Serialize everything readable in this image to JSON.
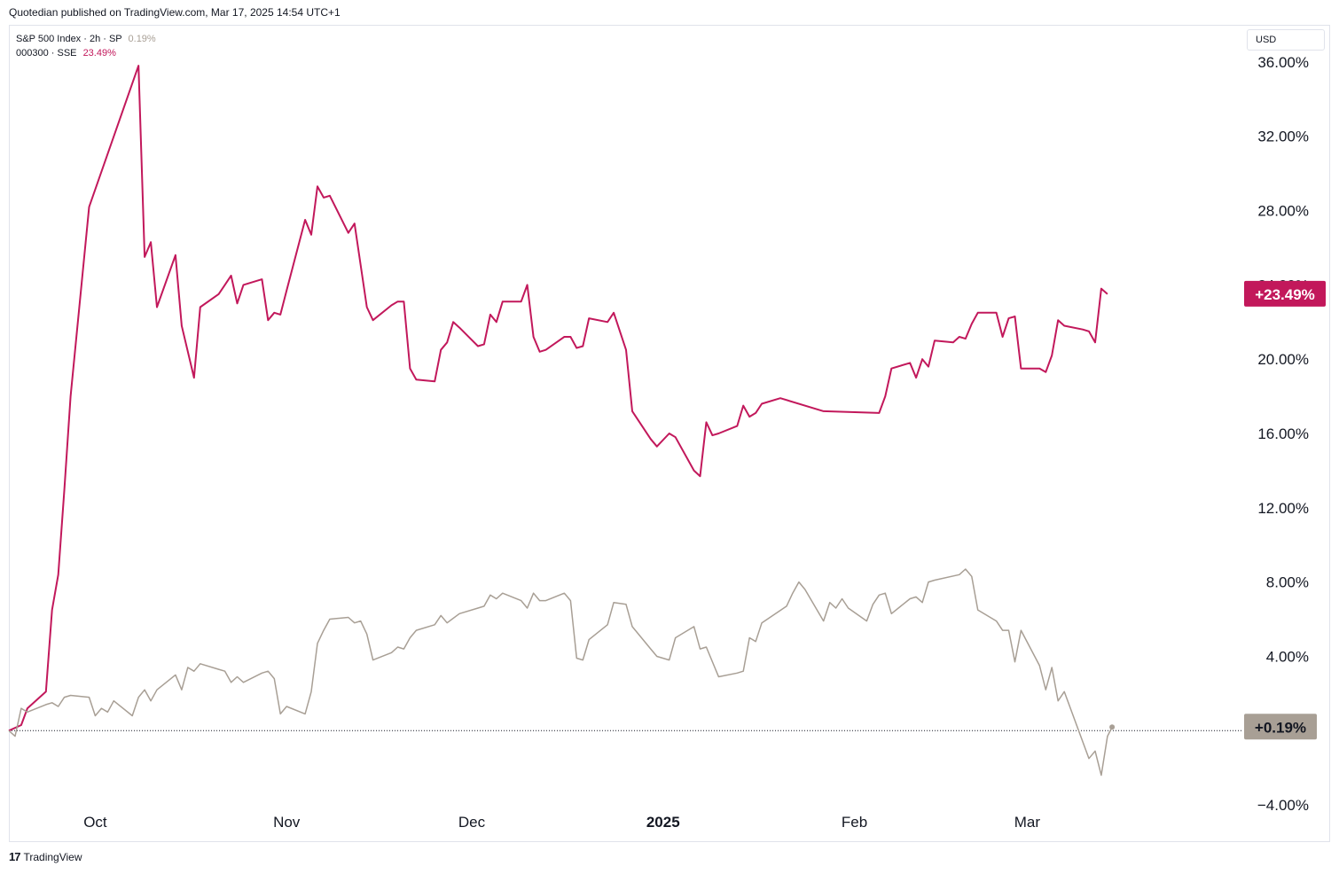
{
  "header": {
    "publish_text": "Quotedian published on TradingView.com, Mar 17, 2025 14:54 UTC+1"
  },
  "legend": {
    "sp_name": "S&P 500 Index · 2h · SP",
    "sp_value": "0.19%",
    "sse_name": "000300 · SSE",
    "sse_value": "23.49%"
  },
  "currency_label": "USD",
  "footer": {
    "logo_glyph": "17",
    "brand": "TradingView"
  },
  "colors": {
    "sse": "#c2185b",
    "sp": "#a89f95",
    "grid_border": "#e0e3eb"
  },
  "chart_data": {
    "type": "line",
    "y_unit": "%",
    "ylim": [
      -6,
      38
    ],
    "xlim": [
      "2024-09-17",
      "2025-04-05"
    ],
    "y_ticks": [
      "36.00%",
      "32.00%",
      "28.00%",
      "24.00%",
      "20.00%",
      "16.00%",
      "12.00%",
      "8.00%",
      "4.00%",
      "−4.00%"
    ],
    "y_tick_values": [
      36,
      32,
      28,
      24,
      20,
      16,
      12,
      8,
      4,
      -4
    ],
    "x_ticks": [
      {
        "label": "Oct",
        "date": "2024-10-01"
      },
      {
        "label": "Nov",
        "date": "2024-11-01"
      },
      {
        "label": "Dec",
        "date": "2024-12-01"
      },
      {
        "label": "2025",
        "date": "2025-01-01",
        "bold": true
      },
      {
        "label": "Feb",
        "date": "2025-02-01"
      },
      {
        "label": "Mar",
        "date": "2025-03-01"
      }
    ],
    "grid": false,
    "baseline_value": 0,
    "series": [
      {
        "name": "000300 · SSE",
        "color": "#c2185b",
        "last_label": "+23.49%",
        "points": [
          [
            "2024-09-17",
            0
          ],
          [
            "2024-09-19",
            0.3
          ],
          [
            "2024-09-20",
            1.2
          ],
          [
            "2024-09-23",
            2.1
          ],
          [
            "2024-09-24",
            6.5
          ],
          [
            "2024-09-25",
            8.4
          ],
          [
            "2024-09-26",
            13
          ],
          [
            "2024-09-27",
            18
          ],
          [
            "2024-09-30",
            28.2
          ],
          [
            "2024-10-08",
            35.8
          ],
          [
            "2024-10-09",
            25.5
          ],
          [
            "2024-10-10",
            26.3
          ],
          [
            "2024-10-11",
            22.8
          ],
          [
            "2024-10-14",
            25.6
          ],
          [
            "2024-10-15",
            21.8
          ],
          [
            "2024-10-17",
            19
          ],
          [
            "2024-10-18",
            22.8
          ],
          [
            "2024-10-21",
            23.5
          ],
          [
            "2024-10-22",
            24
          ],
          [
            "2024-10-23",
            24.5
          ],
          [
            "2024-10-24",
            23
          ],
          [
            "2024-10-25",
            24
          ],
          [
            "2024-10-28",
            24.3
          ],
          [
            "2024-10-29",
            22.1
          ],
          [
            "2024-10-30",
            22.5
          ],
          [
            "2024-10-31",
            22.4
          ],
          [
            "2024-11-01",
            23.7
          ],
          [
            "2024-11-04",
            27.5
          ],
          [
            "2024-11-05",
            26.7
          ],
          [
            "2024-11-06",
            29.3
          ],
          [
            "2024-11-07",
            28.7
          ],
          [
            "2024-11-08",
            28.8
          ],
          [
            "2024-11-11",
            26.8
          ],
          [
            "2024-11-12",
            27.3
          ],
          [
            "2024-11-14",
            22.8
          ],
          [
            "2024-11-15",
            22.1
          ],
          [
            "2024-11-18",
            22.9
          ],
          [
            "2024-11-19",
            23.1
          ],
          [
            "2024-11-20",
            23.1
          ],
          [
            "2024-11-21",
            19.5
          ],
          [
            "2024-11-22",
            18.9
          ],
          [
            "2024-11-25",
            18.8
          ],
          [
            "2024-11-26",
            20.5
          ],
          [
            "2024-11-27",
            20.9
          ],
          [
            "2024-11-28",
            22
          ],
          [
            "2024-11-29",
            21.7
          ],
          [
            "2024-12-02",
            20.7
          ],
          [
            "2024-12-03",
            20.8
          ],
          [
            "2024-12-04",
            22.4
          ],
          [
            "2024-12-05",
            22
          ],
          [
            "2024-12-06",
            23.1
          ],
          [
            "2024-12-09",
            23.1
          ],
          [
            "2024-12-10",
            24
          ],
          [
            "2024-12-11",
            21.2
          ],
          [
            "2024-12-12",
            20.4
          ],
          [
            "2024-12-13",
            20.5
          ],
          [
            "2024-12-16",
            21.2
          ],
          [
            "2024-12-17",
            21.2
          ],
          [
            "2024-12-18",
            20.6
          ],
          [
            "2024-12-19",
            20.7
          ],
          [
            "2024-12-20",
            22.2
          ],
          [
            "2024-12-23",
            22
          ],
          [
            "2024-12-24",
            22.5
          ],
          [
            "2024-12-26",
            20.5
          ],
          [
            "2024-12-27",
            17.2
          ],
          [
            "2024-12-30",
            15.7
          ],
          [
            "2024-12-31",
            15.3
          ],
          [
            "2025-01-02",
            16
          ],
          [
            "2025-01-03",
            15.8
          ],
          [
            "2025-01-06",
            14
          ],
          [
            "2025-01-07",
            13.7
          ],
          [
            "2025-01-08",
            16.6
          ],
          [
            "2025-01-09",
            15.9
          ],
          [
            "2025-01-10",
            16
          ],
          [
            "2025-01-13",
            16.4
          ],
          [
            "2025-01-14",
            17.5
          ],
          [
            "2025-01-15",
            16.9
          ],
          [
            "2025-01-16",
            17.1
          ],
          [
            "2025-01-17",
            17.6
          ],
          [
            "2025-01-20",
            17.9
          ],
          [
            "2025-01-27",
            17.2
          ],
          [
            "2025-02-05",
            17.1
          ],
          [
            "2025-02-06",
            18
          ],
          [
            "2025-02-07",
            19.5
          ],
          [
            "2025-02-10",
            19.8
          ],
          [
            "2025-02-11",
            19
          ],
          [
            "2025-02-12",
            20
          ],
          [
            "2025-02-13",
            19.6
          ],
          [
            "2025-02-14",
            21
          ],
          [
            "2025-02-17",
            20.9
          ],
          [
            "2025-02-18",
            21.2
          ],
          [
            "2025-02-19",
            21.1
          ],
          [
            "2025-02-20",
            21.9
          ],
          [
            "2025-02-21",
            22.5
          ],
          [
            "2025-02-24",
            22.5
          ],
          [
            "2025-02-25",
            21.2
          ],
          [
            "2025-02-26",
            22.2
          ],
          [
            "2025-02-27",
            22.3
          ],
          [
            "2025-02-28",
            19.5
          ],
          [
            "2025-03-03",
            19.5
          ],
          [
            "2025-03-04",
            19.3
          ],
          [
            "2025-03-05",
            20.2
          ],
          [
            "2025-03-06",
            22.1
          ],
          [
            "2025-03-07",
            21.8
          ],
          [
            "2025-03-10",
            21.6
          ],
          [
            "2025-03-11",
            21.5
          ],
          [
            "2025-03-12",
            20.9
          ],
          [
            "2025-03-13",
            23.8
          ],
          [
            "2025-03-14",
            23.5
          ]
        ]
      },
      {
        "name": "S&P 500 Index · 2h · SP",
        "color": "#a89f95",
        "last_label": "+0.19%",
        "points": [
          [
            "2024-09-17",
            0
          ],
          [
            "2024-09-18",
            -0.3
          ],
          [
            "2024-09-19",
            1.2
          ],
          [
            "2024-09-20",
            1
          ],
          [
            "2024-09-23",
            1.4
          ],
          [
            "2024-09-24",
            1.5
          ],
          [
            "2024-09-25",
            1.3
          ],
          [
            "2024-09-26",
            1.8
          ],
          [
            "2024-09-27",
            1.9
          ],
          [
            "2024-09-30",
            1.8
          ],
          [
            "2024-10-01",
            0.8
          ],
          [
            "2024-10-02",
            1.2
          ],
          [
            "2024-10-03",
            1
          ],
          [
            "2024-10-04",
            1.6
          ],
          [
            "2024-10-07",
            0.8
          ],
          [
            "2024-10-08",
            1.8
          ],
          [
            "2024-10-09",
            2.2
          ],
          [
            "2024-10-10",
            1.6
          ],
          [
            "2024-10-11",
            2.2
          ],
          [
            "2024-10-14",
            3
          ],
          [
            "2024-10-15",
            2.2
          ],
          [
            "2024-10-16",
            3.4
          ],
          [
            "2024-10-17",
            3.2
          ],
          [
            "2024-10-18",
            3.6
          ],
          [
            "2024-10-21",
            3.3
          ],
          [
            "2024-10-22",
            3.2
          ],
          [
            "2024-10-23",
            2.6
          ],
          [
            "2024-10-24",
            2.9
          ],
          [
            "2024-10-25",
            2.6
          ],
          [
            "2024-10-28",
            3.1
          ],
          [
            "2024-10-29",
            3.2
          ],
          [
            "2024-10-30",
            2.8
          ],
          [
            "2024-10-31",
            0.9
          ],
          [
            "2024-11-01",
            1.3
          ],
          [
            "2024-11-04",
            0.9
          ],
          [
            "2024-11-05",
            2.1
          ],
          [
            "2024-11-06",
            4.7
          ],
          [
            "2024-11-07",
            5.4
          ],
          [
            "2024-11-08",
            6
          ],
          [
            "2024-11-11",
            6.1
          ],
          [
            "2024-11-12",
            5.8
          ],
          [
            "2024-11-13",
            5.9
          ],
          [
            "2024-11-14",
            5.2
          ],
          [
            "2024-11-15",
            3.8
          ],
          [
            "2024-11-18",
            4.2
          ],
          [
            "2024-11-19",
            4.5
          ],
          [
            "2024-11-20",
            4.4
          ],
          [
            "2024-11-21",
            5
          ],
          [
            "2024-11-22",
            5.4
          ],
          [
            "2024-11-25",
            5.7
          ],
          [
            "2024-11-26",
            6.2
          ],
          [
            "2024-11-27",
            5.8
          ],
          [
            "2024-11-29",
            6.3
          ],
          [
            "2024-12-02",
            6.6
          ],
          [
            "2024-12-03",
            6.7
          ],
          [
            "2024-12-04",
            7.3
          ],
          [
            "2024-12-05",
            7.1
          ],
          [
            "2024-12-06",
            7.4
          ],
          [
            "2024-12-09",
            7
          ],
          [
            "2024-12-10",
            6.6
          ],
          [
            "2024-12-11",
            7.4
          ],
          [
            "2024-12-12",
            7
          ],
          [
            "2024-12-13",
            7
          ],
          [
            "2024-12-16",
            7.4
          ],
          [
            "2024-12-17",
            7
          ],
          [
            "2024-12-18",
            3.9
          ],
          [
            "2024-12-19",
            3.8
          ],
          [
            "2024-12-20",
            4.9
          ],
          [
            "2024-12-23",
            5.7
          ],
          [
            "2024-12-24",
            6.9
          ],
          [
            "2024-12-26",
            6.8
          ],
          [
            "2024-12-27",
            5.6
          ],
          [
            "2024-12-30",
            4.4
          ],
          [
            "2024-12-31",
            4
          ],
          [
            "2025-01-02",
            3.8
          ],
          [
            "2025-01-03",
            5
          ],
          [
            "2025-01-06",
            5.6
          ],
          [
            "2025-01-07",
            4.4
          ],
          [
            "2025-01-08",
            4.5
          ],
          [
            "2025-01-10",
            2.9
          ],
          [
            "2025-01-13",
            3.1
          ],
          [
            "2025-01-14",
            3.2
          ],
          [
            "2025-01-15",
            5
          ],
          [
            "2025-01-16",
            4.8
          ],
          [
            "2025-01-17",
            5.8
          ],
          [
            "2025-01-21",
            6.7
          ],
          [
            "2025-01-22",
            7.4
          ],
          [
            "2025-01-23",
            8
          ],
          [
            "2025-01-24",
            7.6
          ],
          [
            "2025-01-27",
            5.9
          ],
          [
            "2025-01-28",
            6.9
          ],
          [
            "2025-01-29",
            6.6
          ],
          [
            "2025-01-30",
            7.1
          ],
          [
            "2025-01-31",
            6.6
          ],
          [
            "2025-02-03",
            5.9
          ],
          [
            "2025-02-04",
            6.8
          ],
          [
            "2025-02-05",
            7.3
          ],
          [
            "2025-02-06",
            7.4
          ],
          [
            "2025-02-07",
            6.3
          ],
          [
            "2025-02-10",
            7.1
          ],
          [
            "2025-02-11",
            7.2
          ],
          [
            "2025-02-12",
            6.9
          ],
          [
            "2025-02-13",
            8
          ],
          [
            "2025-02-14",
            8.1
          ],
          [
            "2025-02-18",
            8.4
          ],
          [
            "2025-02-19",
            8.7
          ],
          [
            "2025-02-20",
            8.3
          ],
          [
            "2025-02-21",
            6.5
          ],
          [
            "2025-02-24",
            5.9
          ],
          [
            "2025-02-25",
            5.4
          ],
          [
            "2025-02-26",
            5.4
          ],
          [
            "2025-02-27",
            3.7
          ],
          [
            "2025-02-28",
            5.4
          ],
          [
            "2025-03-03",
            3.5
          ],
          [
            "2025-03-04",
            2.2
          ],
          [
            "2025-03-05",
            3.4
          ],
          [
            "2025-03-06",
            1.6
          ],
          [
            "2025-03-07",
            2.1
          ],
          [
            "2025-03-10",
            -0.6
          ],
          [
            "2025-03-11",
            -1.5
          ],
          [
            "2025-03-12",
            -1.1
          ],
          [
            "2025-03-13",
            -2.4
          ],
          [
            "2025-03-14",
            -0.3
          ],
          [
            "2025-03-14T18:00",
            0.19
          ]
        ]
      }
    ]
  }
}
